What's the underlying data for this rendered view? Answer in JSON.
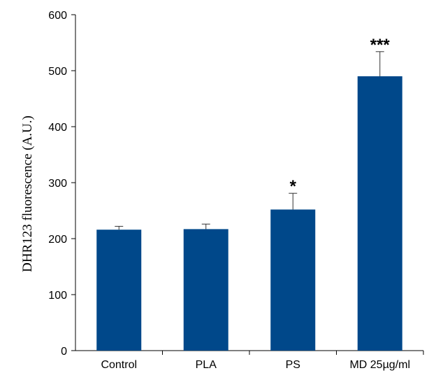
{
  "chart_data": {
    "type": "bar",
    "title": "",
    "xlabel": "",
    "ylabel": "DHR123 fluorescence (A.U.)",
    "ylim": [
      0,
      600
    ],
    "yticks": [
      0,
      100,
      200,
      300,
      400,
      500,
      600
    ],
    "grid": false,
    "categories": [
      "Control",
      "PLA",
      "PS",
      "MD 25µg/ml"
    ],
    "values": [
      216,
      217,
      252,
      490
    ],
    "errors": [
      6,
      9,
      29,
      44
    ],
    "significance": [
      "",
      "",
      "*",
      "***"
    ],
    "bar_color": "#00488A"
  }
}
